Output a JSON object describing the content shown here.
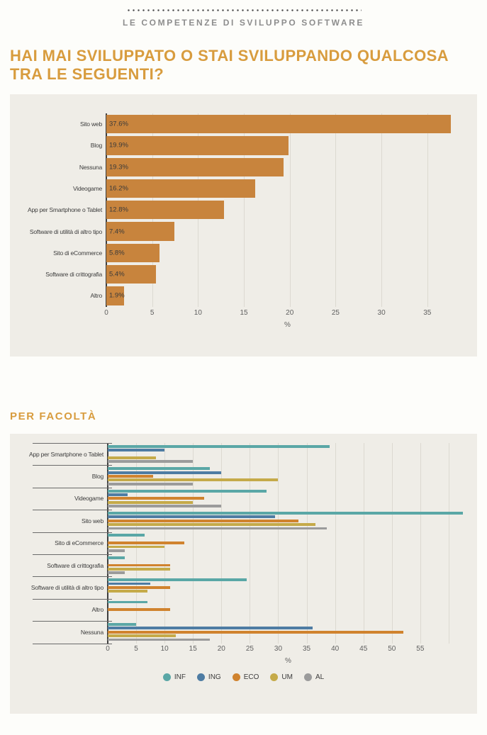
{
  "header": {
    "kicker": "LE COMPETENZE DI SVILUPPO SOFTWARE",
    "title": "HAI MAI SVILUPPATO O STAI SVILUPPANDO QUALCOSA TRA LE SEGUENTI?"
  },
  "section2": {
    "title": "PER FACOLTÀ"
  },
  "colors": {
    "accent_gold": "#d89c3e",
    "panel_bg": "#efede7",
    "bar_orange": "#c8843d",
    "inf_teal": "#5aa7a6",
    "ing_blue": "#4e7ca3",
    "eco_orange": "#d0832e",
    "um_olive": "#c5aa49",
    "al_gray": "#9b9b9b"
  },
  "chart_data": [
    {
      "type": "bar",
      "orientation": "horizontal",
      "categories": [
        "Sito web",
        "Blog",
        "Nessuna",
        "Videogame",
        "App per Smartphone o Tablet",
        "Software di utilità di altro tipo",
        "Sito di eCommerce",
        "Software di crittografia",
        "Altro"
      ],
      "values": [
        37.6,
        19.9,
        19.3,
        16.2,
        12.8,
        7.4,
        5.8,
        5.4,
        1.9
      ],
      "value_labels": [
        "37.6%",
        "19.9%",
        "19.3%",
        "16.2%",
        "12.8%",
        "7.4%",
        "5.8%",
        "5.4%",
        "1.9%"
      ],
      "xlabel": "%",
      "xticks": [
        0,
        5,
        10,
        15,
        20,
        25,
        30,
        35
      ],
      "xlim": [
        0,
        39.5
      ],
      "grid": true,
      "bar_color": "#c8843d"
    },
    {
      "type": "bar",
      "orientation": "horizontal",
      "grouped": true,
      "categories": [
        "App per Smartphone o Tablet",
        "Blog",
        "Videogame",
        "Sito web",
        "Sito di eCommerce",
        "Software di crittografia",
        "Software di utilità di altro tipo",
        "Altro",
        "Nessuna"
      ],
      "series": [
        {
          "name": "INF",
          "color": "#5aa7a6",
          "values": [
            39,
            18,
            28,
            62.5,
            6.5,
            3,
            24.5,
            7,
            5
          ]
        },
        {
          "name": "ING",
          "color": "#4e7ca3",
          "values": [
            10,
            20,
            3.5,
            29.5,
            0,
            0,
            7.5,
            0,
            36
          ]
        },
        {
          "name": "ECO",
          "color": "#d0832e",
          "values": [
            0,
            8,
            17,
            33.5,
            13.5,
            11,
            11,
            11,
            52
          ]
        },
        {
          "name": "UM",
          "color": "#c5aa49",
          "values": [
            8.5,
            30,
            15,
            36.5,
            10,
            11,
            7,
            0,
            12
          ]
        },
        {
          "name": "AL",
          "color": "#9b9b9b",
          "values": [
            15,
            15,
            20,
            38.5,
            3,
            3,
            0,
            0,
            18
          ]
        }
      ],
      "xlabel": "%",
      "xticks": [
        0,
        5,
        10,
        15,
        20,
        25,
        30,
        35,
        40,
        45,
        50,
        55
      ],
      "extra_gridlines": [
        60
      ],
      "xlim": [
        0,
        63.5
      ],
      "grid": true,
      "legend_position": "bottom"
    }
  ]
}
